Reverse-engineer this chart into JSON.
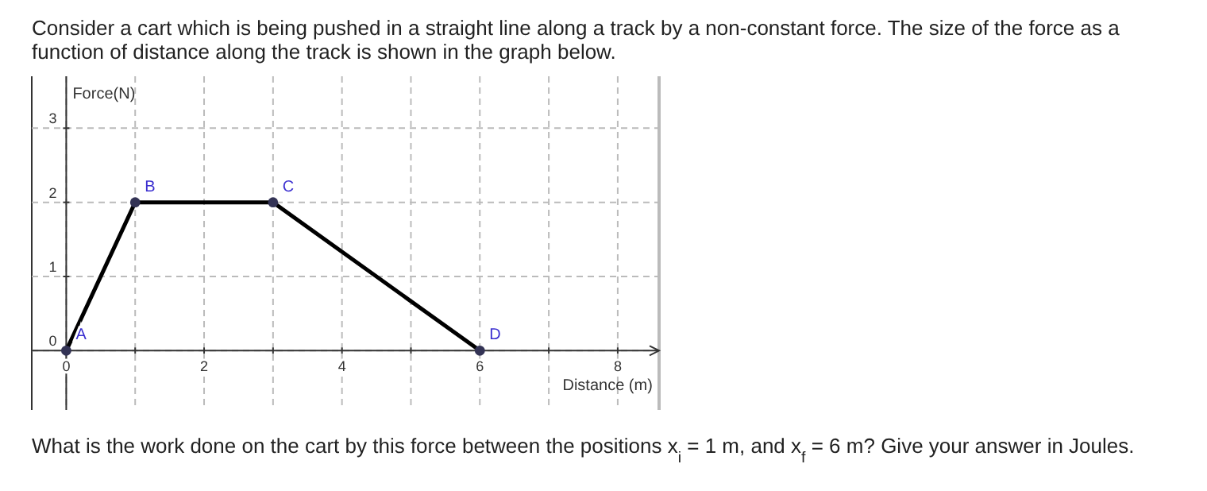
{
  "chart_data": {
    "type": "line",
    "title": "Consider a cart which is being pushed in a straight line along a track by a non-constant force.  The size of the force as a function of distance along the track is shown in the graph below.",
    "xlabel": "Distance (m)",
    "ylabel": "Force(N)",
    "x": [
      0,
      1,
      3,
      6
    ],
    "series": [
      {
        "color": "#000000",
        "values": [
          0,
          2,
          2,
          0
        ]
      }
    ],
    "marker": "circle",
    "line_style": "solid",
    "grid": true,
    "xlim": [
      -0.5,
      8.6
    ],
    "ylim": [
      -0.8,
      3.7
    ],
    "xticks": [
      0,
      {
        "value": 1,
        "label": null
      },
      2,
      {
        "value": 3,
        "label": null
      },
      4,
      {
        "value": 5,
        "label": null
      },
      6,
      {
        "value": 7,
        "label": null
      },
      8
    ],
    "yticks": [
      0,
      1,
      2,
      3
    ],
    "annotations": [
      {
        "text": "A",
        "x": 0,
        "y": 0
      },
      {
        "text": "B",
        "x": 1,
        "y": 2
      },
      {
        "text": "C",
        "x": 3,
        "y": 2
      },
      {
        "text": "D",
        "x": 6,
        "y": 0
      },
      "What is the work done on the cart by this force between the positions x$_{i}$ = 1 m, and x$_{f}$ = 6 m?  Give your answer in Joules."
    ]
  }
}
